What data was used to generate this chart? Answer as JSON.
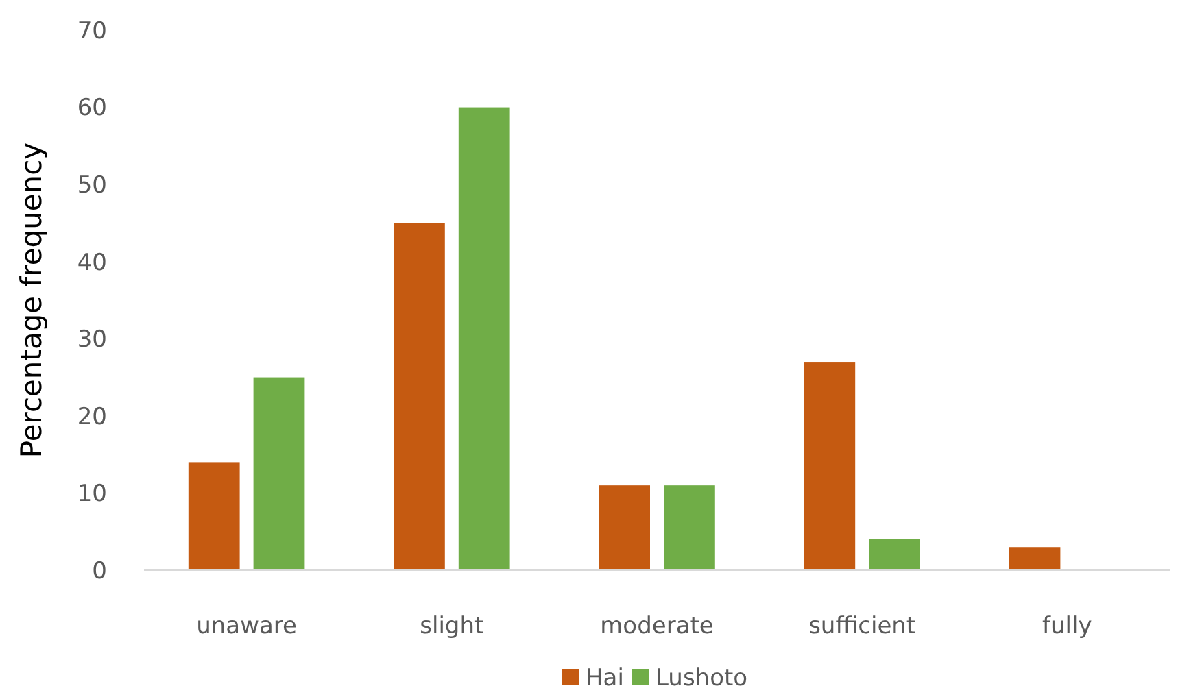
{
  "chart_data": {
    "type": "bar",
    "ylabel": "Percentage frequency",
    "categories": [
      "unaware",
      "slight",
      "moderate",
      "sufficient",
      "fully"
    ],
    "series": [
      {
        "name": "Hai",
        "color": "#c55a11",
        "values": [
          14,
          45,
          11,
          27,
          3
        ]
      },
      {
        "name": "Lushoto",
        "color": "#70ad47",
        "values": [
          25,
          60,
          11,
          4,
          null
        ]
      }
    ],
    "ylim": [
      0,
      70
    ],
    "yticks": [
      0,
      10,
      20,
      30,
      40,
      50,
      60,
      70
    ],
    "grid": false,
    "legend": "bottom"
  }
}
